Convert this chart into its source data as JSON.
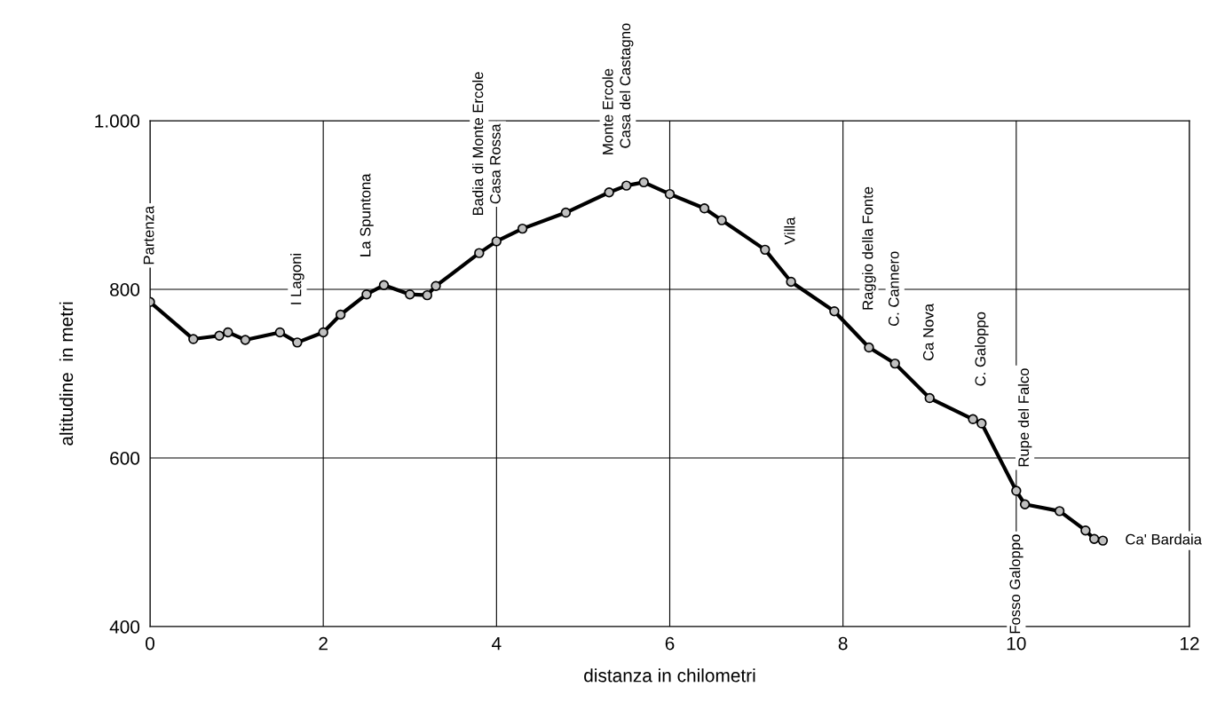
{
  "chart_data": {
    "type": "line",
    "xlabel": "distanza in chilometri",
    "ylabel": "altitudine  in metri",
    "x": [
      0,
      0.5,
      0.8,
      0.9,
      1.1,
      1.5,
      1.7,
      2.0,
      2.2,
      2.5,
      2.7,
      3.0,
      3.2,
      3.3,
      3.8,
      4.0,
      4.3,
      4.8,
      5.3,
      5.5,
      5.7,
      6.0,
      6.4,
      6.6,
      7.1,
      7.4,
      7.9,
      8.3,
      8.6,
      9.0,
      9.5,
      9.6,
      10.0,
      10.1,
      10.5,
      10.8,
      10.9,
      11.0
    ],
    "series": [
      {
        "color": "#000000",
        "values": [
          785,
          741,
          745,
          749,
          740,
          749,
          737,
          749,
          770,
          794,
          805,
          794,
          793,
          804,
          843,
          857,
          872,
          891,
          915,
          923,
          927,
          913,
          896,
          882,
          847,
          809,
          774,
          731,
          712,
          671,
          646,
          641,
          561,
          545,
          537,
          514,
          504,
          502
        ]
      }
    ],
    "marker": "circle",
    "line_style": "solid",
    "grid": true,
    "legend": false,
    "xlim": [
      0,
      12
    ],
    "xticks": [
      0,
      2,
      4,
      6,
      8,
      10,
      12
    ],
    "ylim": [
      400,
      1000
    ],
    "yticks": [
      400,
      600,
      800,
      {
        "value": 1000,
        "label": "1.000"
      }
    ],
    "annotations": [
      {
        "text": "Partenza",
        "x": 0,
        "y": 785
      },
      {
        "text": "I Lagoni",
        "x": 1.7,
        "y": 737
      },
      {
        "text": "La Spuntona",
        "x": 2.5,
        "y": 794
      },
      {
        "text": "Badia di Monte Ercole",
        "x": 3.8,
        "y": 843
      },
      {
        "text": "Casa Rossa",
        "x": 4.0,
        "y": 857
      },
      {
        "text": "Monte Ercole",
        "x": 5.3,
        "y": 915
      },
      {
        "text": "Casa del Castagno",
        "x": 5.5,
        "y": 923
      },
      {
        "text": "Villa",
        "x": 7.4,
        "y": 809
      },
      {
        "text": "Raggio della Fonte",
        "x": 8.3,
        "y": 731
      },
      {
        "text": "C. Cannero",
        "x": 8.6,
        "y": 712
      },
      {
        "text": "Ca Nova",
        "x": 9.0,
        "y": 671
      },
      {
        "text": "C. Galoppo",
        "x": 9.6,
        "y": 641
      },
      {
        "text": "Fosso Galoppo",
        "x": 10.0,
        "y": 561
      },
      {
        "text": "Rupe del Falco",
        "x": 10.1,
        "y": 545
      },
      {
        "text": "Ca' Bardaia",
        "x": 11.0,
        "y": 502
      }
    ]
  }
}
